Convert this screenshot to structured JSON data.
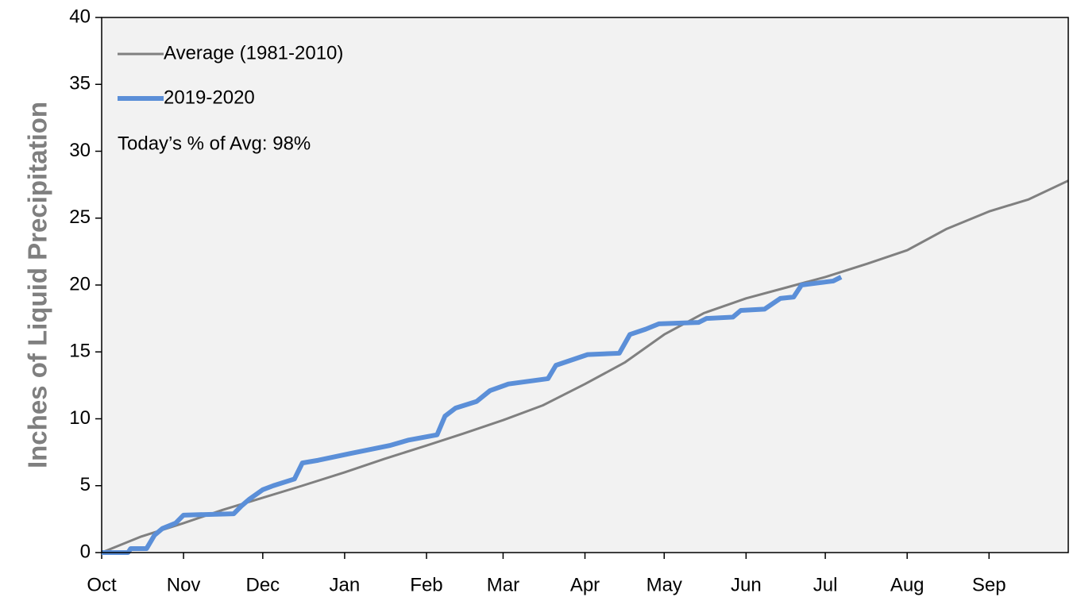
{
  "chart_data": {
    "type": "line",
    "y_label": "Inches of Liquid Precipitation",
    "annotation": "Today’s % of Avg: 98%",
    "xlim": [
      0,
      366
    ],
    "xticks": [
      {
        "value": 0,
        "label": "Oct"
      },
      {
        "value": 31,
        "label": "Nov"
      },
      {
        "value": 61,
        "label": "Dec"
      },
      {
        "value": 92,
        "label": "Jan"
      },
      {
        "value": 123,
        "label": "Feb"
      },
      {
        "value": 152,
        "label": "Mar"
      },
      {
        "value": 183,
        "label": "Apr"
      },
      {
        "value": 213,
        "label": "May"
      },
      {
        "value": 244,
        "label": "Jun"
      },
      {
        "value": 274,
        "label": "Jul"
      },
      {
        "value": 305,
        "label": "Aug"
      },
      {
        "value": 336,
        "label": "Sep"
      }
    ],
    "ylim": [
      0,
      40
    ],
    "yticks": [
      0,
      5,
      10,
      15,
      20,
      25,
      30,
      35,
      40
    ],
    "grid": false,
    "legend": "top-left",
    "series": [
      {
        "name": "Average (1981-2010)",
        "color": "#808080",
        "width": 3,
        "x": [
          0,
          15,
          31,
          46,
          61,
          76,
          92,
          107,
          123,
          137,
          152,
          167,
          183,
          198,
          213,
          228,
          244,
          259,
          274,
          290,
          305,
          320,
          336,
          351,
          366
        ],
        "values": [
          0,
          1.2,
          2.2,
          3.2,
          4.1,
          5.0,
          6.0,
          7.0,
          8.0,
          8.9,
          9.9,
          11.0,
          12.6,
          14.2,
          16.3,
          17.9,
          19.0,
          19.8,
          20.6,
          21.6,
          22.6,
          24.2,
          25.5,
          26.4,
          27.8
        ]
      },
      {
        "name": "2019-2020",
        "color": "#5b8fd8",
        "width": 6,
        "x": [
          0,
          10,
          11,
          17,
          20,
          23,
          28,
          31,
          50,
          53,
          56,
          61,
          65,
          73,
          76,
          82,
          94,
          109,
          116,
          127,
          130,
          134,
          142,
          147,
          154,
          169,
          172,
          178,
          184,
          196,
          200,
          206,
          211,
          226,
          229,
          239,
          242,
          251,
          257,
          262,
          265,
          277,
          280
        ],
        "values": [
          0,
          0,
          0.3,
          0.3,
          1.3,
          1.8,
          2.2,
          2.8,
          2.9,
          3.5,
          4.0,
          4.7,
          5.0,
          5.5,
          6.7,
          6.9,
          7.4,
          8.0,
          8.4,
          8.8,
          10.2,
          10.8,
          11.3,
          12.1,
          12.6,
          13.0,
          14.0,
          14.4,
          14.8,
          14.9,
          16.3,
          16.7,
          17.1,
          17.2,
          17.5,
          17.6,
          18.1,
          18.2,
          19.0,
          19.1,
          20.0,
          20.3,
          20.6
        ]
      }
    ]
  }
}
